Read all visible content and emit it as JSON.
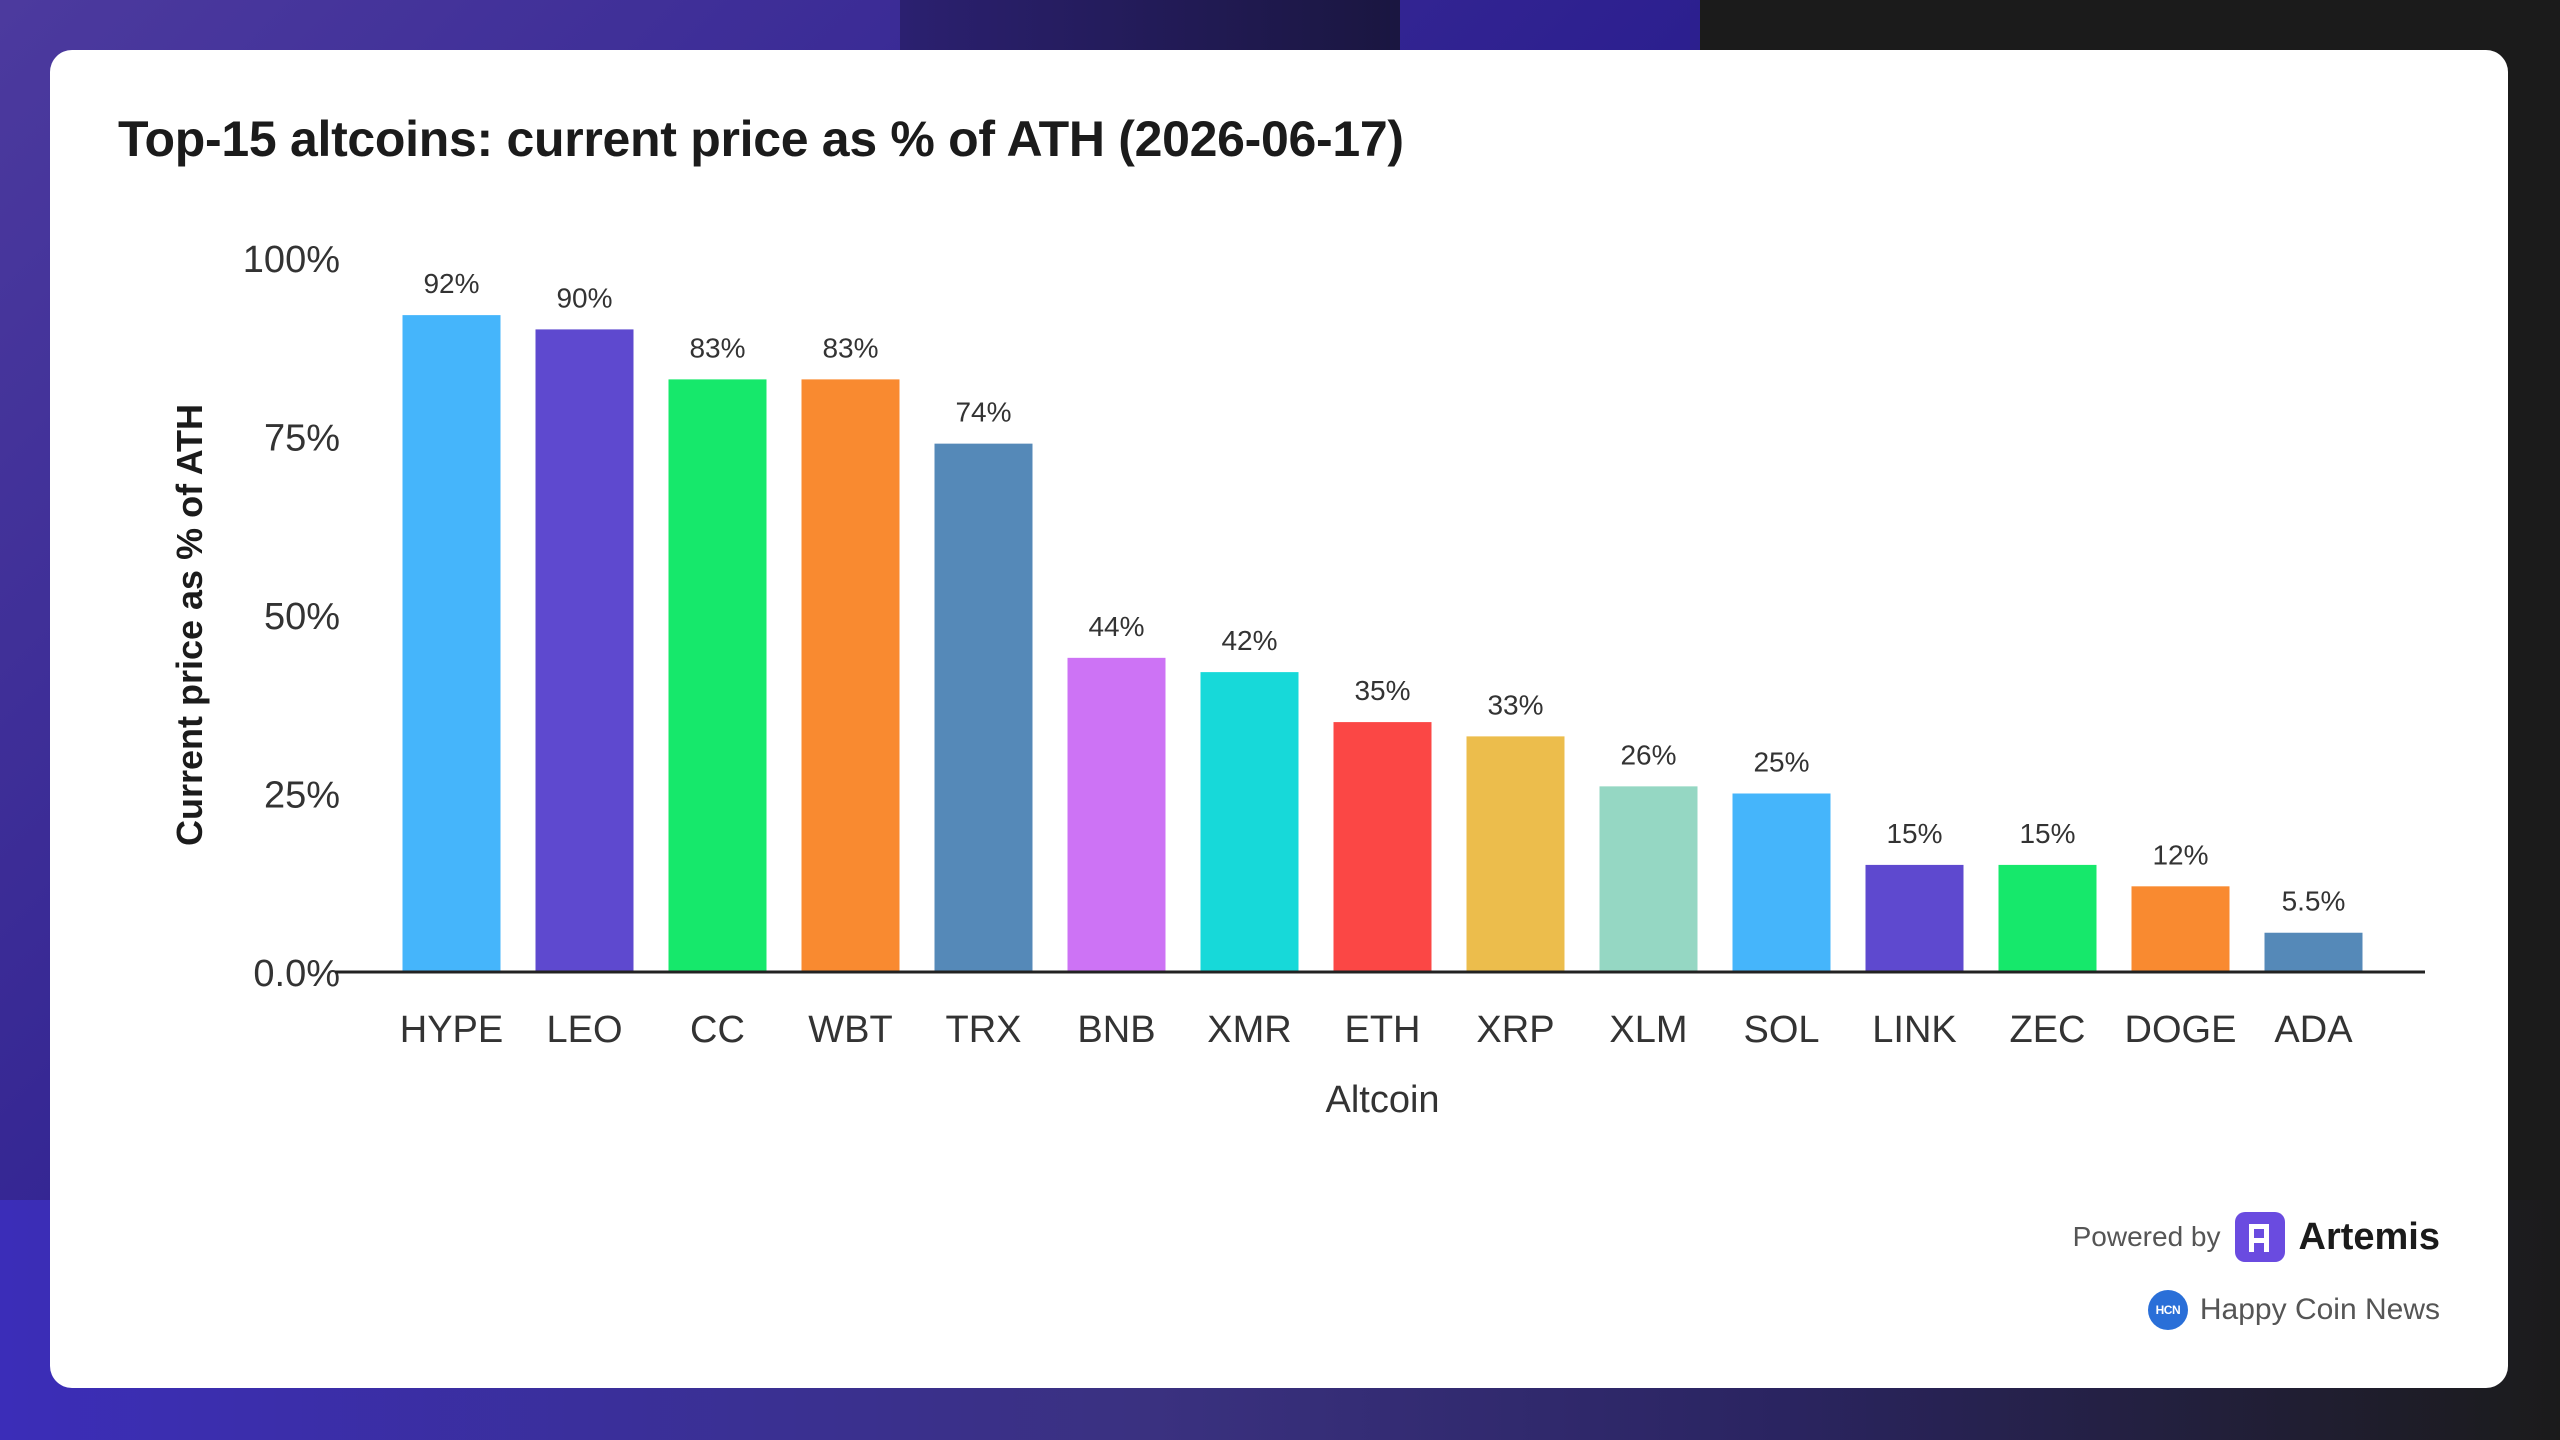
{
  "title": "Top-15 altcoins: current price as % of ATH (2026-06-17)",
  "colors": {
    "HYPE": "#45b5fb",
    "LEO": "#5e49cf",
    "CC": "#16e86b",
    "WBT": "#f98a30",
    "TRX": "#5589b8",
    "BNB": "#cd73f5",
    "XMR": "#17d9d9",
    "ETH": "#fb4745",
    "XRP": "#ecbd4c",
    "XLM": "#95d7c3",
    "SOL": "#45b5fb",
    "LINK": "#5e49cf",
    "ZEC": "#16e86b",
    "DOGE": "#f98a30",
    "ADA": "#5589b8"
  },
  "chart_data": {
    "type": "bar",
    "title": "Top-15 altcoins: current price as % of ATH (2026-06-17)",
    "xlabel": "Altcoin",
    "ylabel": "Current price as % of ATH",
    "ylim": [
      0,
      100
    ],
    "yticks": [
      0,
      25,
      50,
      75,
      100
    ],
    "ytick_labels": [
      "0.0%",
      "25%",
      "50%",
      "75%",
      "100%"
    ],
    "grid": false,
    "categories": [
      "HYPE",
      "LEO",
      "CC",
      "WBT",
      "TRX",
      "BNB",
      "XMR",
      "ETH",
      "XRP",
      "XLM",
      "SOL",
      "LINK",
      "ZEC",
      "DOGE",
      "ADA"
    ],
    "values": [
      92,
      90,
      83,
      83,
      74,
      44,
      42,
      35,
      33,
      26,
      25,
      15,
      15,
      12,
      5.5
    ],
    "data_labels": [
      "92%",
      "90%",
      "83%",
      "83%",
      "74%",
      "44%",
      "42%",
      "35%",
      "33%",
      "26%",
      "25%",
      "15%",
      "15%",
      "12%",
      "5.5%"
    ]
  },
  "branding": {
    "powered_by": "Powered by",
    "artemis": "Artemis",
    "news": "Happy Coin News",
    "news_logo_text": "HCN"
  }
}
